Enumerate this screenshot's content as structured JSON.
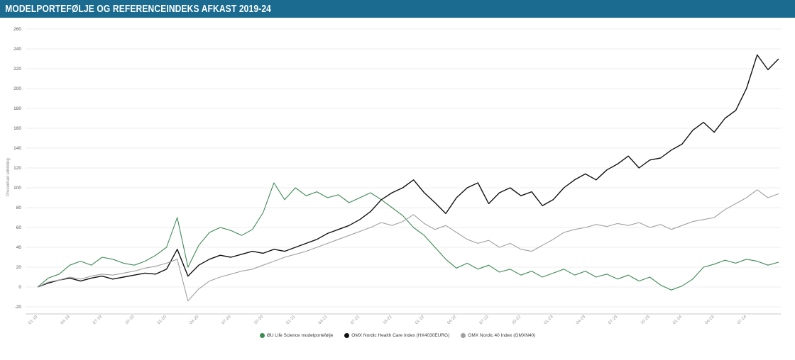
{
  "header": {
    "title": "MODELPORTEFØLJE OG REFERENCEINDEKS AFKAST 2019-24"
  },
  "colors": {
    "banner": "#1a6b8f",
    "grid": "#ececec",
    "axis_line": "#c8c8c8",
    "y_tick_text": "#555555",
    "x_tick_text": "#999999",
    "axis_title_text": "#888888"
  },
  "chart_data": {
    "type": "line",
    "title": "MODELPORTEFØLJE OG REFERENCEINDEKS AFKAST 2019-24",
    "xlabel": "",
    "ylabel": "Procentuel udvikling",
    "ylim": [
      -27,
      264
    ],
    "grid": "horizontal",
    "legend_position": "bottom",
    "yticks": [
      -20,
      0,
      20,
      40,
      60,
      80,
      100,
      120,
      140,
      160,
      180,
      200,
      220,
      240,
      260
    ],
    "x_tick_labels": [
      "01-19",
      "04-19",
      "07-19",
      "10-19",
      "01-20",
      "04-20",
      "07-20",
      "10-20",
      "01-21",
      "04-21",
      "07-21",
      "10-21",
      "01-22",
      "04-22",
      "07-22",
      "10-22",
      "01-23",
      "04-23",
      "07-23",
      "10-23",
      "01-24",
      "04-24",
      "07-24"
    ],
    "x_tick_positions": [
      0,
      3,
      6,
      9,
      12,
      15,
      18,
      21,
      24,
      27,
      30,
      33,
      36,
      39,
      42,
      45,
      48,
      51,
      54,
      57,
      60,
      63,
      66
    ],
    "x_unit": "month-index from Jan 2019",
    "series": [
      {
        "name": "ØU Life Science modelportefølje",
        "color": "#3e8a55",
        "values": [
          0,
          9,
          13,
          22,
          26,
          22,
          30,
          28,
          24,
          22,
          26,
          32,
          40,
          70,
          20,
          42,
          55,
          60,
          57,
          52,
          58,
          75,
          105,
          88,
          100,
          92,
          96,
          90,
          93,
          85,
          90,
          95,
          88,
          80,
          72,
          60,
          52,
          40,
          28,
          19,
          24,
          18,
          22,
          15,
          18,
          12,
          16,
          10,
          14,
          18,
          12,
          16,
          10,
          13,
          8,
          12,
          6,
          10,
          2,
          -3,
          1,
          8,
          20,
          23,
          27,
          24,
          28,
          26,
          22,
          25
        ]
      },
      {
        "name": "OMX Nordic Health Care Index (HX4030EURG)",
        "color": "#121212",
        "values": [
          0,
          4,
          7,
          9,
          6,
          9,
          11,
          8,
          10,
          12,
          14,
          13,
          18,
          38,
          11,
          22,
          28,
          32,
          30,
          33,
          36,
          34,
          38,
          36,
          40,
          44,
          48,
          54,
          58,
          62,
          68,
          76,
          88,
          95,
          100,
          108,
          95,
          85,
          74,
          90,
          100,
          105,
          84,
          95,
          100,
          92,
          96,
          82,
          88,
          100,
          108,
          114,
          108,
          118,
          124,
          132,
          120,
          128,
          130,
          138,
          144,
          158,
          166,
          156,
          170,
          178,
          200,
          234,
          219,
          230
        ]
      },
      {
        "name": "OMX Nordic 40 Index (OMXN40)",
        "color": "#a0a0a0",
        "values": [
          0,
          5,
          7,
          10,
          8,
          11,
          13,
          12,
          14,
          16,
          19,
          21,
          24,
          28,
          -14,
          -2,
          6,
          10,
          13,
          16,
          18,
          22,
          26,
          30,
          33,
          36,
          40,
          44,
          48,
          52,
          56,
          60,
          65,
          62,
          66,
          73,
          64,
          58,
          62,
          55,
          48,
          44,
          47,
          40,
          44,
          38,
          36,
          42,
          48,
          55,
          58,
          60,
          63,
          61,
          64,
          62,
          65,
          60,
          63,
          58,
          62,
          66,
          68,
          70,
          78,
          84,
          90,
          98,
          90,
          94
        ]
      }
    ]
  }
}
